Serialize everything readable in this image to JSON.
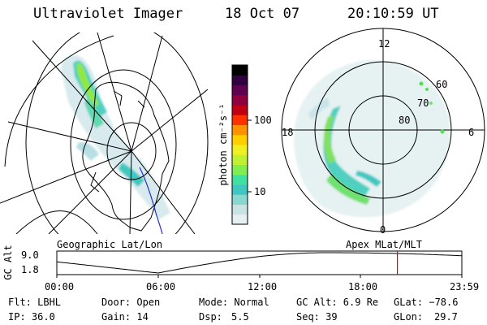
{
  "header": {
    "title": "Ultraviolet Imager",
    "date": "18 Oct 07",
    "time": "20:10:59 UT"
  },
  "left_panel": {
    "label": "Geographic Lat/Lon"
  },
  "right_panel": {
    "label": "Apex MLat/MLT",
    "mlt_labels": {
      "top": "12",
      "left": "18",
      "right": "6",
      "bottom": "0"
    },
    "lat_labels": [
      "60",
      "70",
      "80"
    ]
  },
  "colorbar": {
    "unit_label": "photon cm⁻²s⁻¹",
    "ticks": [
      {
        "value": 100,
        "label": "100"
      },
      {
        "value": 10,
        "label": "10"
      }
    ],
    "scale": "log",
    "colors": [
      "#e6f0f2",
      "#c8e2e6",
      "#88d8d0",
      "#40c8c0",
      "#40e0a0",
      "#80ee50",
      "#c0f030",
      "#f0f020",
      "#ffd000",
      "#ff9000",
      "#ff3000",
      "#c00010",
      "#900040",
      "#600050",
      "#300040",
      "#000000"
    ]
  },
  "altitude_plot": {
    "axis_label": "GC Alt",
    "y_ticks": [
      "9.0",
      "1.8"
    ],
    "x_ticks": [
      "00:00",
      "06:00",
      "12:00",
      "18:00",
      "23:59"
    ],
    "current_time_hours": 20.18,
    "marker_color": "#e00000"
  },
  "info": {
    "flt": "Flt: LBHL",
    "door": "Door: Open",
    "mode": "Mode: Normal",
    "gc_alt": "GC Alt: 6.9 Re",
    "glat": "GLat: −78.6",
    "ip": "IP: 36.0",
    "gain": "Gain: 14",
    "dsp_label": "Dsp:",
    "dsp_value": "5.5",
    "seq": "Seq: 39",
    "glon_label": "GLon:",
    "glon_value": "29.7"
  }
}
